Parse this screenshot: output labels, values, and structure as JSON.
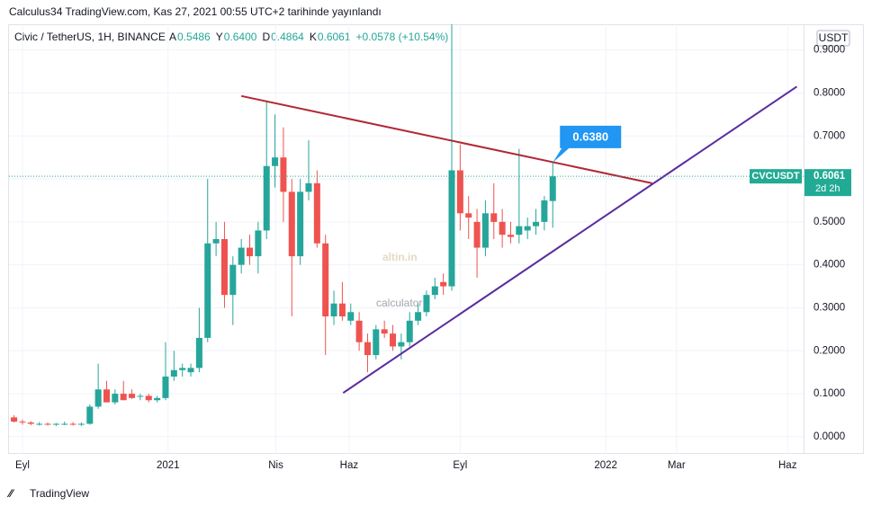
{
  "header": {
    "published": "Calculus34 TradingView.com, Kas 27, 2021 00:55 UTC+2 tarihinde yayınlandı",
    "symbol": "Civic / TetherUS, 1H, BINANCE",
    "legend": [
      {
        "key": "A",
        "value": "0.5486"
      },
      {
        "key": "Y",
        "value": "0.6400"
      },
      {
        "key": "D",
        "value": "0.4864"
      },
      {
        "key": "K",
        "value": "0.6061"
      }
    ],
    "change": "+0.0578 (+10.54%)"
  },
  "currency": "USDT",
  "watermark": {
    "brand": "altin.in",
    "sub": "calculator"
  },
  "footer": "TradingView",
  "chart_data": {
    "type": "candlestick",
    "up_color": "#26a69a",
    "down_color": "#ef5350",
    "x": [
      -1,
      0,
      1,
      2,
      3,
      4,
      5,
      6,
      7,
      8,
      9,
      10,
      11,
      12,
      13,
      14,
      15,
      16,
      17,
      18,
      19,
      20,
      21,
      22,
      23,
      24,
      25,
      26,
      27,
      28,
      29,
      30,
      31,
      32,
      33,
      34,
      35,
      36,
      37,
      38,
      39,
      40,
      41,
      42,
      43,
      44,
      45,
      46,
      47,
      48,
      49,
      50,
      51,
      52,
      53,
      54,
      55,
      56,
      57,
      58,
      59,
      60,
      61,
      62,
      63
    ],
    "open": [
      0.045,
      0.035,
      0.033,
      0.03,
      0.03,
      0.028,
      0.03,
      0.03,
      0.028,
      0.03,
      0.07,
      0.11,
      0.08,
      0.1,
      0.1,
      0.095,
      0.095,
      0.085,
      0.09,
      0.14,
      0.155,
      0.15,
      0.16,
      0.23,
      0.45,
      0.46,
      0.33,
      0.4,
      0.44,
      0.42,
      0.48,
      0.63,
      0.65,
      0.57,
      0.42,
      0.57,
      0.59,
      0.45,
      0.28,
      0.31,
      0.27,
      0.27,
      0.22,
      0.19,
      0.25,
      0.24,
      0.21,
      0.22,
      0.27,
      0.29,
      0.33,
      0.36,
      0.35,
      0.62,
      0.52,
      0.5,
      0.44,
      0.52,
      0.5,
      0.47,
      0.47,
      0.48,
      0.49,
      0.5,
      0.5486
    ],
    "high": [
      0.05,
      0.04,
      0.036,
      0.034,
      0.033,
      0.032,
      0.035,
      0.034,
      0.033,
      0.075,
      0.17,
      0.13,
      0.11,
      0.13,
      0.11,
      0.1,
      0.1,
      0.095,
      0.22,
      0.2,
      0.17,
      0.17,
      0.3,
      0.6,
      0.5,
      0.5,
      0.42,
      0.46,
      0.47,
      0.5,
      0.78,
      0.75,
      0.72,
      0.6,
      0.6,
      0.69,
      0.62,
      0.47,
      0.34,
      0.36,
      0.31,
      0.29,
      0.24,
      0.26,
      0.27,
      0.26,
      0.24,
      0.29,
      0.31,
      0.34,
      0.37,
      0.38,
      0.96,
      0.68,
      0.56,
      0.53,
      0.55,
      0.59,
      0.53,
      0.5,
      0.67,
      0.51,
      0.53,
      0.56,
      0.64
    ],
    "low": [
      0.033,
      0.028,
      0.027,
      0.026,
      0.026,
      0.025,
      0.027,
      0.026,
      0.025,
      0.028,
      0.065,
      0.08,
      0.075,
      0.085,
      0.088,
      0.085,
      0.08,
      0.08,
      0.085,
      0.13,
      0.14,
      0.14,
      0.15,
      0.22,
      0.42,
      0.3,
      0.26,
      0.38,
      0.4,
      0.38,
      0.46,
      0.58,
      0.5,
      0.28,
      0.4,
      0.55,
      0.44,
      0.19,
      0.26,
      0.27,
      0.26,
      0.2,
      0.15,
      0.18,
      0.23,
      0.2,
      0.18,
      0.21,
      0.26,
      0.28,
      0.32,
      0.33,
      0.34,
      0.48,
      0.46,
      0.37,
      0.42,
      0.46,
      0.44,
      0.45,
      0.45,
      0.46,
      0.47,
      0.48,
      0.4864
    ],
    "close": [
      0.035,
      0.033,
      0.03,
      0.03,
      0.028,
      0.03,
      0.03,
      0.028,
      0.03,
      0.07,
      0.11,
      0.08,
      0.1,
      0.085,
      0.09,
      0.095,
      0.085,
      0.09,
      0.14,
      0.155,
      0.16,
      0.16,
      0.23,
      0.45,
      0.46,
      0.33,
      0.4,
      0.44,
      0.42,
      0.48,
      0.63,
      0.65,
      0.57,
      0.42,
      0.57,
      0.59,
      0.45,
      0.28,
      0.31,
      0.28,
      0.29,
      0.22,
      0.19,
      0.25,
      0.24,
      0.21,
      0.22,
      0.27,
      0.29,
      0.33,
      0.35,
      0.35,
      0.62,
      0.52,
      0.51,
      0.44,
      0.52,
      0.5,
      0.47,
      0.465,
      0.49,
      0.49,
      0.5,
      0.55,
      0.6061
    ],
    "xlim": [
      -1.6,
      92.8
    ],
    "ylim": [
      -0.04,
      0.96
    ],
    "xticks": [
      {
        "value": 0,
        "label": "Eyl"
      },
      {
        "value": 17.3,
        "label": "2021"
      },
      {
        "value": 30.1,
        "label": "Nis"
      },
      {
        "value": 38.8,
        "label": "Haz"
      },
      {
        "value": 52,
        "label": "Eyl"
      },
      {
        "value": 69.3,
        "label": "2022"
      },
      {
        "value": 77.7,
        "label": "Mar"
      },
      {
        "value": 90.9,
        "label": "Haz"
      }
    ],
    "yticks": [
      {
        "value": 0,
        "label": "0.0000"
      },
      {
        "value": 0.1,
        "label": "0.1000"
      },
      {
        "value": 0.2,
        "label": "0.2000"
      },
      {
        "value": 0.3,
        "label": "0.3000"
      },
      {
        "value": 0.4,
        "label": "0.4000"
      },
      {
        "value": 0.5,
        "label": "0.5000"
      },
      {
        "value": 0.6,
        "label": "0.6000"
      },
      {
        "value": 0.7,
        "label": "0.7000"
      },
      {
        "value": 0.8,
        "label": "0.8000"
      },
      {
        "value": 0.9,
        "label": "0.9000"
      }
    ],
    "grid": true,
    "trendlines": [
      {
        "color": "#b22833",
        "x": [
          26,
          74.8
        ],
        "y": [
          0.793,
          0.59
        ]
      },
      {
        "color": "#5b2c9f",
        "x": [
          38.1,
          92
        ],
        "y": [
          0.102,
          0.815
        ]
      }
    ],
    "last_price": {
      "symbol": "CVCUSDT",
      "value": 0.6061,
      "label": "0.6061",
      "countdown": "2d 2h",
      "color": "#22ab94"
    },
    "callout": {
      "x": 63,
      "value": 0.638,
      "label": "0.6380",
      "color": "#2196f3"
    }
  }
}
